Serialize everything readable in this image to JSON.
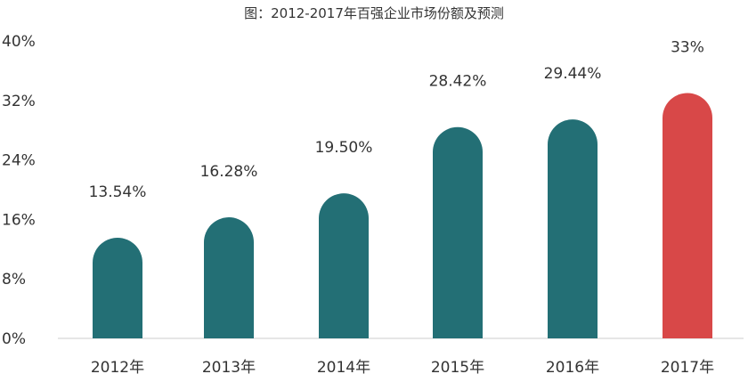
{
  "chart_data": {
    "type": "bar",
    "title": "图：2012-2017年百强企业市场份额及预测",
    "categories": [
      "2012年",
      "2013年",
      "2014年",
      "2015年",
      "2016年",
      "2017年"
    ],
    "values": [
      13.54,
      16.28,
      19.5,
      28.42,
      29.44,
      33
    ],
    "data_labels": [
      "13.54%",
      "16.28%",
      "19.50%",
      "28.42%",
      "29.44%",
      "33%"
    ],
    "yticks": [
      "0%",
      "8%",
      "16%",
      "24%",
      "32%",
      "40%"
    ],
    "ylim": [
      0,
      40
    ],
    "grid": false,
    "colors": {
      "bar": "#236f75",
      "highlight": "#d84848",
      "highlight_index": 5,
      "text": "#333333",
      "axis": "#cccccc"
    }
  }
}
